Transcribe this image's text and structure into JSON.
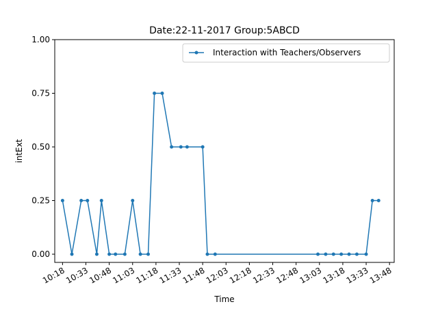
{
  "chart_data": {
    "type": "line",
    "title": "Date:22-11-2017  Group:5ABCD",
    "xlabel": "Time",
    "ylabel": "intExt",
    "ylim": [
      0,
      1
    ],
    "xlim": [
      "10:13",
      "13:51"
    ],
    "y_ticks": [
      "0.00",
      "0.25",
      "0.50",
      "0.75",
      "1.00"
    ],
    "x_ticks": [
      "10:18",
      "10:33",
      "10:48",
      "11:03",
      "11:18",
      "11:33",
      "11:48",
      "12:03",
      "12:18",
      "12:33",
      "12:48",
      "13:03",
      "13:18",
      "13:33",
      "13:48"
    ],
    "legend": "top-right",
    "grid": false,
    "series": [
      {
        "name": "Interaction with Teachers/Observers",
        "color": "#1f77b4",
        "x": [
          "10:18",
          "10:24",
          "10:30",
          "10:34",
          "10:40",
          "10:43",
          "10:48",
          "10:52",
          "10:58",
          "11:03",
          "11:08",
          "11:13",
          "11:17",
          "11:22",
          "11:28",
          "11:34",
          "11:38",
          "11:48",
          "11:51",
          "11:56",
          "13:02",
          "13:07",
          "13:12",
          "13:17",
          "13:22",
          "13:27",
          "13:33",
          "13:37",
          "13:41"
        ],
        "values": [
          0.25,
          0,
          0.25,
          0.25,
          0,
          0.25,
          0,
          0,
          0,
          0.25,
          0,
          0,
          0.75,
          0.75,
          0.5,
          0.5,
          0.5,
          0.5,
          0,
          0,
          0,
          0,
          0,
          0,
          0,
          0,
          0,
          0.25,
          0.25
        ]
      }
    ]
  }
}
